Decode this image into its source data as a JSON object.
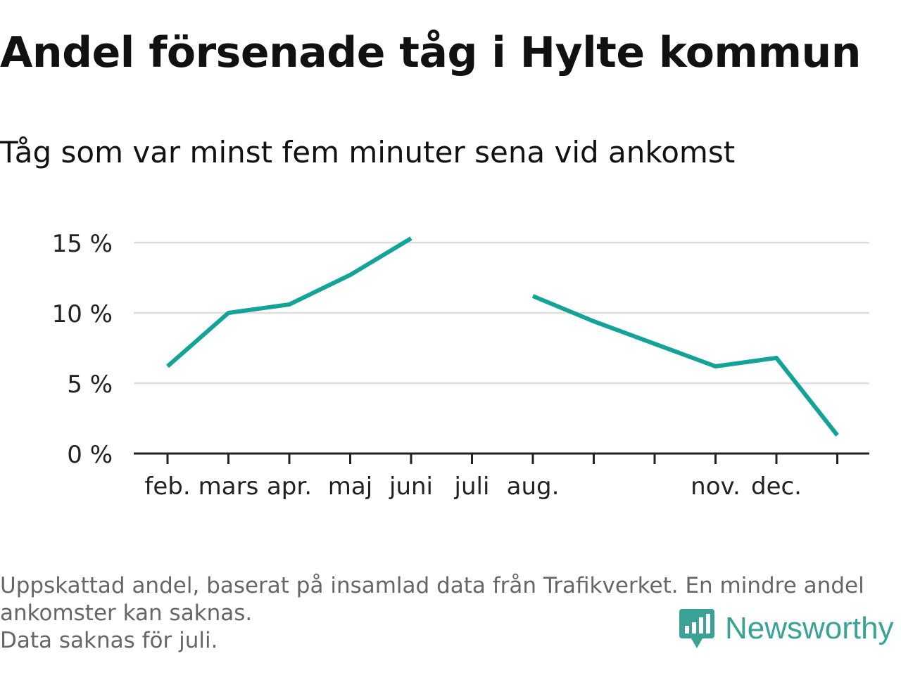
{
  "header": {
    "title": "Andel försenade tåg i Hylte kommun",
    "subtitle": "Tåg som var minst fem minuter sena vid ankomst"
  },
  "chart_data": {
    "type": "line",
    "title": "Andel försenade tåg i Hylte kommun",
    "subtitle": "Tåg som var minst fem minuter sena vid ankomst",
    "xlabel": "",
    "ylabel": "",
    "categories": [
      "feb.",
      "mars",
      "apr.",
      "maj",
      "juni",
      "juli",
      "aug.",
      "",
      "",
      "nov.",
      "dec.",
      ""
    ],
    "series": [
      {
        "values": [
          6.2,
          10.0,
          10.6,
          12.7,
          15.3,
          null,
          11.2,
          9.4,
          7.8,
          6.2,
          6.8,
          1.3
        ],
        "color": "#13a399"
      }
    ],
    "y_ticks": [
      0,
      5,
      10,
      15
    ],
    "y_tick_labels": [
      "0 %",
      "5 %",
      "10 %",
      "15 %"
    ],
    "ylim": [
      0,
      16
    ],
    "grid": true,
    "legend": "none",
    "colors": {
      "line": "#13a399",
      "grid": "#dddddd",
      "axis": "#222222",
      "tick_text": "#222222"
    }
  },
  "footnotes": [
    "Uppskattad andel, baserat på insamlad data från Trafikverket. En mindre andel",
    "ankomster kan saknas.",
    "Data saknas för juli."
  ],
  "brand": {
    "name": "Newsworthy",
    "icon": "newsworthy-logo-icon",
    "color": "#3aa396"
  }
}
